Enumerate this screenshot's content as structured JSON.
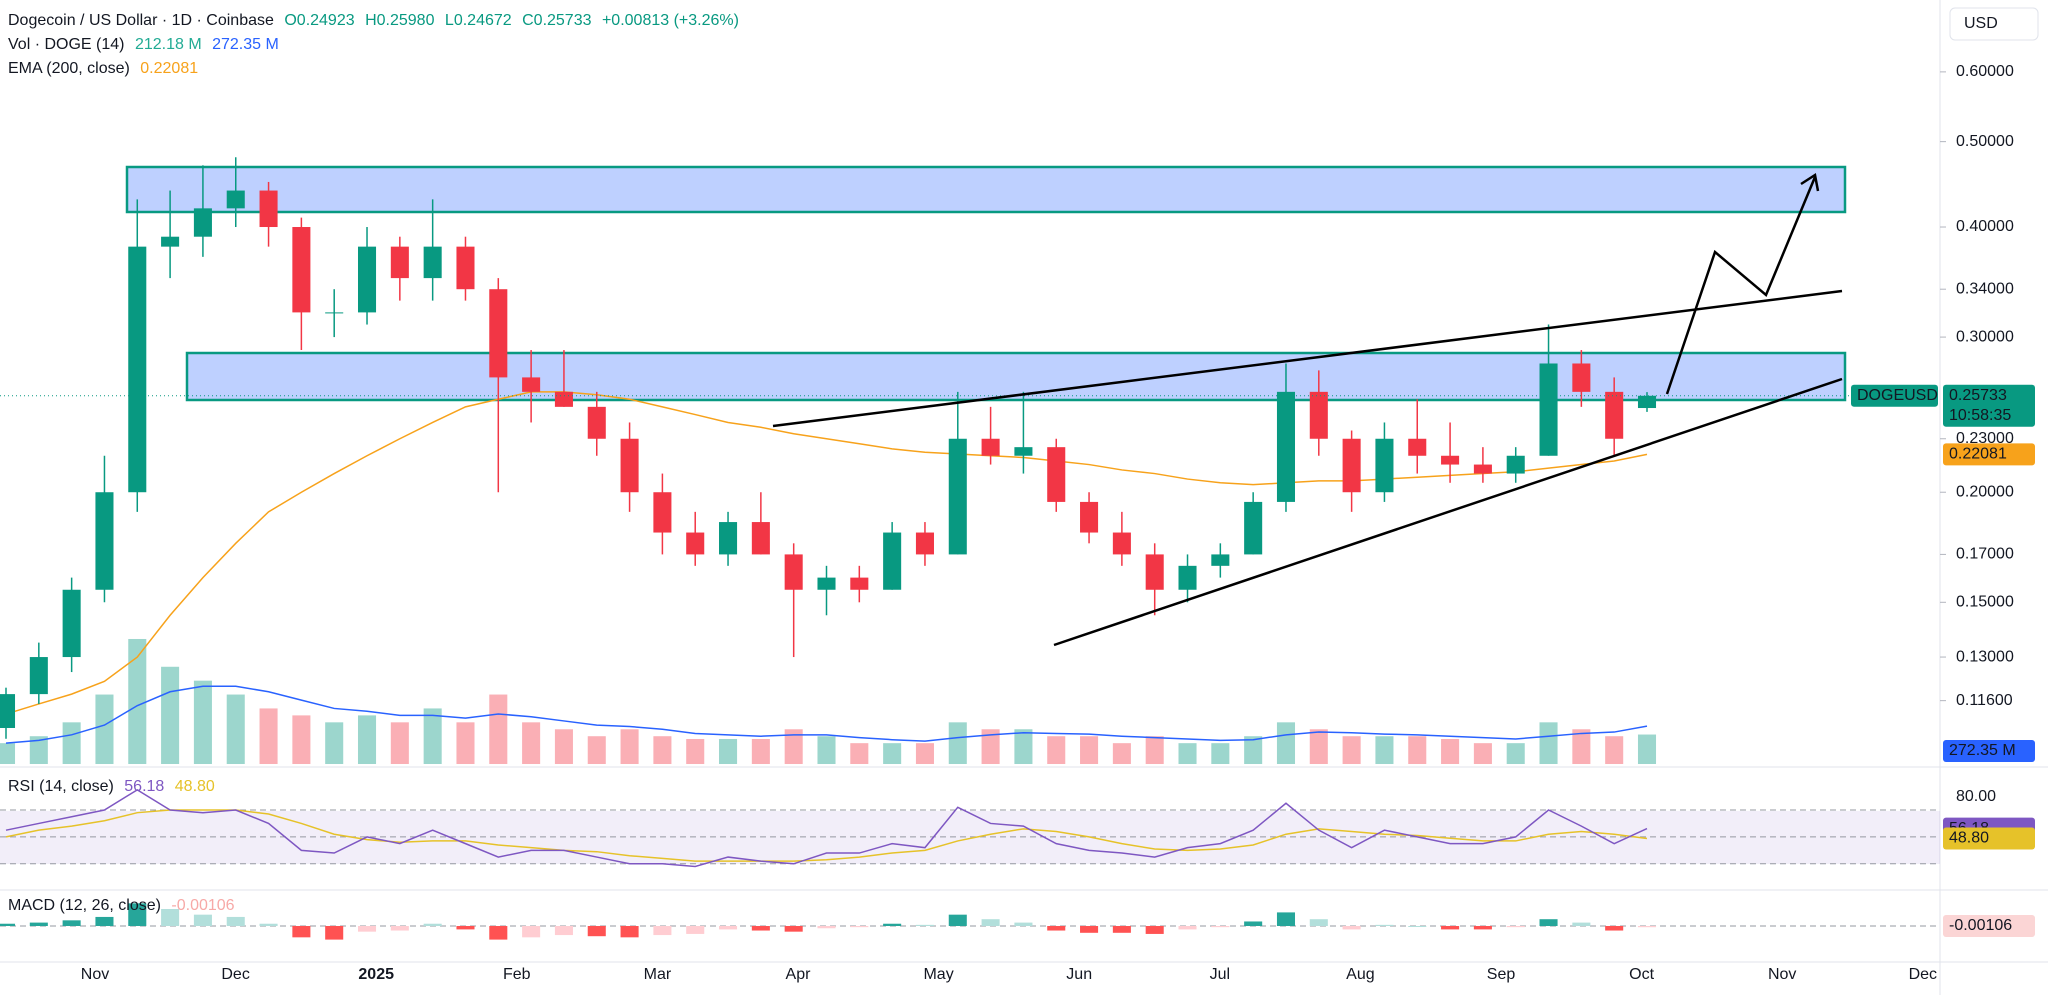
{
  "chart_data": {
    "type": "candlestick",
    "title": "Dogecoin / US Dollar · 1D · Coinbase",
    "quote": [
      "O0.24923",
      "H0.25980",
      "L0.24672",
      "C0.25733",
      "+0.00813 (+3.26%)"
    ],
    "symbol": "DOGEUSD",
    "countdown": "10:58:35",
    "currency": "USD",
    "log_scale": true,
    "up_color": "#089981",
    "down_color": "#f23645",
    "ylim": [
      0.0983,
      0.724
    ],
    "yticks": [
      {
        "value": 0.6,
        "label": "0.60000"
      },
      {
        "value": 0.5,
        "label": "0.50000"
      },
      {
        "value": 0.4,
        "label": "0.40000"
      },
      {
        "value": 0.34,
        "label": "0.34000"
      },
      {
        "value": 0.3,
        "label": "0.30000"
      },
      {
        "value": 0.23,
        "label": "0.23000"
      },
      {
        "value": 0.2,
        "label": "0.20000"
      },
      {
        "value": 0.17,
        "label": "0.17000"
      },
      {
        "value": 0.15,
        "label": "0.15000"
      },
      {
        "value": 0.13,
        "label": "0.13000"
      },
      {
        "value": 0.116,
        "label": "0.11600"
      }
    ],
    "xticks": [
      "Nov",
      "Dec",
      "2025",
      "Feb",
      "Mar",
      "Apr",
      "May",
      "Jun",
      "Jul",
      "Aug",
      "Sep",
      "Oct",
      "Nov",
      "Dec"
    ],
    "open": [
      0.108,
      0.118,
      0.13,
      0.155,
      0.2,
      0.38,
      0.39,
      0.42,
      0.44,
      0.4,
      0.32,
      0.32,
      0.38,
      0.35,
      0.38,
      0.34,
      0.27,
      0.26,
      0.25,
      0.23,
      0.2,
      0.18,
      0.17,
      0.185,
      0.17,
      0.155,
      0.16,
      0.155,
      0.18,
      0.17,
      0.23,
      0.22,
      0.225,
      0.195,
      0.18,
      0.17,
      0.155,
      0.165,
      0.17,
      0.195,
      0.26,
      0.23,
      0.2,
      0.23,
      0.22,
      0.215,
      0.21,
      0.22,
      0.28,
      0.26,
      0.24923
    ],
    "high": [
      0.12,
      0.135,
      0.16,
      0.22,
      0.43,
      0.44,
      0.47,
      0.48,
      0.45,
      0.41,
      0.34,
      0.4,
      0.39,
      0.43,
      0.39,
      0.35,
      0.29,
      0.29,
      0.26,
      0.24,
      0.21,
      0.19,
      0.19,
      0.2,
      0.175,
      0.165,
      0.165,
      0.185,
      0.185,
      0.26,
      0.25,
      0.26,
      0.23,
      0.2,
      0.19,
      0.175,
      0.17,
      0.175,
      0.2,
      0.28,
      0.275,
      0.235,
      0.24,
      0.255,
      0.24,
      0.225,
      0.225,
      0.31,
      0.29,
      0.27,
      0.2598
    ],
    "low": [
      0.105,
      0.115,
      0.125,
      0.15,
      0.19,
      0.35,
      0.37,
      0.4,
      0.38,
      0.29,
      0.3,
      0.31,
      0.33,
      0.33,
      0.33,
      0.2,
      0.24,
      0.25,
      0.22,
      0.19,
      0.17,
      0.165,
      0.165,
      0.17,
      0.13,
      0.145,
      0.15,
      0.155,
      0.165,
      0.17,
      0.215,
      0.21,
      0.19,
      0.175,
      0.165,
      0.145,
      0.15,
      0.16,
      0.17,
      0.19,
      0.22,
      0.19,
      0.195,
      0.21,
      0.205,
      0.205,
      0.205,
      0.22,
      0.25,
      0.22,
      0.24672
    ],
    "close": [
      0.118,
      0.13,
      0.155,
      0.2,
      0.38,
      0.39,
      0.42,
      0.44,
      0.4,
      0.32,
      0.32,
      0.38,
      0.35,
      0.38,
      0.34,
      0.27,
      0.26,
      0.25,
      0.23,
      0.2,
      0.18,
      0.17,
      0.185,
      0.17,
      0.155,
      0.16,
      0.155,
      0.18,
      0.17,
      0.23,
      0.22,
      0.225,
      0.195,
      0.18,
      0.17,
      0.155,
      0.165,
      0.17,
      0.195,
      0.26,
      0.23,
      0.2,
      0.23,
      0.22,
      0.215,
      0.21,
      0.22,
      0.28,
      0.26,
      0.23,
      0.25733
    ],
    "ema": {
      "name": "EMA (200, close)",
      "color": "#f7a21b",
      "values": [
        0.112,
        0.115,
        0.118,
        0.122,
        0.13,
        0.145,
        0.16,
        0.175,
        0.19,
        0.2,
        0.21,
        0.22,
        0.23,
        0.24,
        0.25,
        0.255,
        0.26,
        0.26,
        0.258,
        0.255,
        0.25,
        0.245,
        0.24,
        0.237,
        0.233,
        0.23,
        0.227,
        0.224,
        0.222,
        0.221,
        0.22,
        0.219,
        0.217,
        0.215,
        0.212,
        0.21,
        0.207,
        0.205,
        0.204,
        0.205,
        0.206,
        0.206,
        0.207,
        0.208,
        0.209,
        0.21,
        0.211,
        0.213,
        0.215,
        0.217,
        0.22081
      ]
    },
    "volume": {
      "name": "Vol · DOGE (14)",
      "ylim": [
        0,
        5500
      ],
      "values": [
        150,
        200,
        300,
        500,
        900,
        700,
        600,
        500,
        400,
        350,
        300,
        350,
        300,
        400,
        300,
        500,
        300,
        250,
        200,
        250,
        200,
        180,
        180,
        180,
        250,
        200,
        150,
        150,
        150,
        300,
        250,
        250,
        200,
        200,
        150,
        200,
        150,
        150,
        200,
        300,
        250,
        200,
        200,
        200,
        180,
        150,
        150,
        300,
        250,
        200,
        212.18
      ],
      "last_label": "212.18 M",
      "ma_color": "#2962ff",
      "ma_values": [
        150,
        170,
        210,
        280,
        420,
        520,
        560,
        560,
        520,
        460,
        400,
        380,
        350,
        350,
        330,
        360,
        340,
        310,
        280,
        270,
        250,
        220,
        210,
        200,
        210,
        210,
        190,
        175,
        165,
        190,
        210,
        225,
        220,
        215,
        200,
        190,
        180,
        170,
        175,
        210,
        230,
        225,
        215,
        210,
        200,
        190,
        180,
        200,
        220,
        230,
        272.35
      ],
      "ma_last_label": "272.35 M"
    },
    "rsi": {
      "name": "RSI (14, close)",
      "color": "#7e57c2",
      "ma_color": "#e6c229",
      "ylim": [
        12,
        99
      ],
      "yticks": [
        {
          "value": 80,
          "label": "80.00"
        }
      ],
      "levels": [
        70,
        50,
        30
      ],
      "values": [
        55,
        60,
        65,
        70,
        85,
        70,
        68,
        70,
        60,
        40,
        38,
        50,
        45,
        55,
        45,
        35,
        40,
        40,
        35,
        30,
        30,
        28,
        35,
        32,
        30,
        38,
        38,
        45,
        42,
        72,
        60,
        58,
        45,
        40,
        38,
        35,
        42,
        45,
        55,
        75,
        55,
        42,
        55,
        50,
        45,
        45,
        50,
        70,
        58,
        45,
        56.18
      ],
      "ma_values": [
        50,
        55,
        58,
        62,
        68,
        70,
        70,
        70,
        67,
        60,
        52,
        48,
        46,
        47,
        47,
        44,
        42,
        40,
        39,
        36,
        34,
        32,
        32,
        32,
        32,
        33,
        35,
        38,
        40,
        47,
        52,
        56,
        54,
        50,
        45,
        41,
        40,
        41,
        44,
        52,
        56,
        54,
        52,
        51,
        49,
        47,
        47,
        52,
        54,
        52,
        48.8
      ],
      "ma_last_label": "48.80"
    },
    "macd": {
      "name": "MACD (12, 26, close)",
      "ylim": [
        -0.03,
        0.03
      ],
      "values": [
        0.002,
        0.003,
        0.005,
        0.008,
        0.02,
        0.015,
        0.01,
        0.008,
        0.002,
        -0.01,
        -0.012,
        -0.005,
        -0.004,
        0.002,
        -0.003,
        -0.012,
        -0.01,
        -0.008,
        -0.009,
        -0.01,
        -0.008,
        -0.007,
        -0.003,
        -0.004,
        -0.005,
        -0.002,
        -0.001,
        0.002,
        0.001,
        0.01,
        0.006,
        0.003,
        -0.004,
        -0.006,
        -0.006,
        -0.007,
        -0.003,
        -0.001,
        0.004,
        0.012,
        0.006,
        -0.003,
        0.001,
        0,
        -0.003,
        -0.003,
        -0.001,
        0.006,
        0.003,
        -0.004,
        -0.00106
      ]
    }
  }
}
